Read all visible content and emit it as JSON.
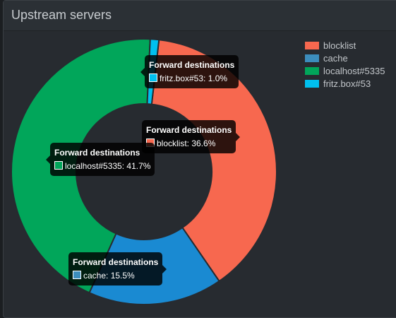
{
  "panel": {
    "title": "Upstream servers"
  },
  "tooltip_title": "Forward destinations",
  "chart_data": {
    "type": "pie",
    "donut": true,
    "series": [
      {
        "name": "blocklist",
        "value": 36.6,
        "color": "#f7684f",
        "label": "blocklist: 36.6%"
      },
      {
        "name": "cache",
        "value": 15.5,
        "color": "#1a8ad2",
        "label": "cache: 15.5%"
      },
      {
        "name": "localhost#5335",
        "value": 41.7,
        "color": "#01a65a",
        "label": "localhost#5335: 41.7%"
      },
      {
        "name": "fritz.box#53",
        "value": 1.0,
        "color": "#00c0ef",
        "label": "fritz.box#53: 1.0%"
      }
    ],
    "legend_position": "top-right"
  }
}
